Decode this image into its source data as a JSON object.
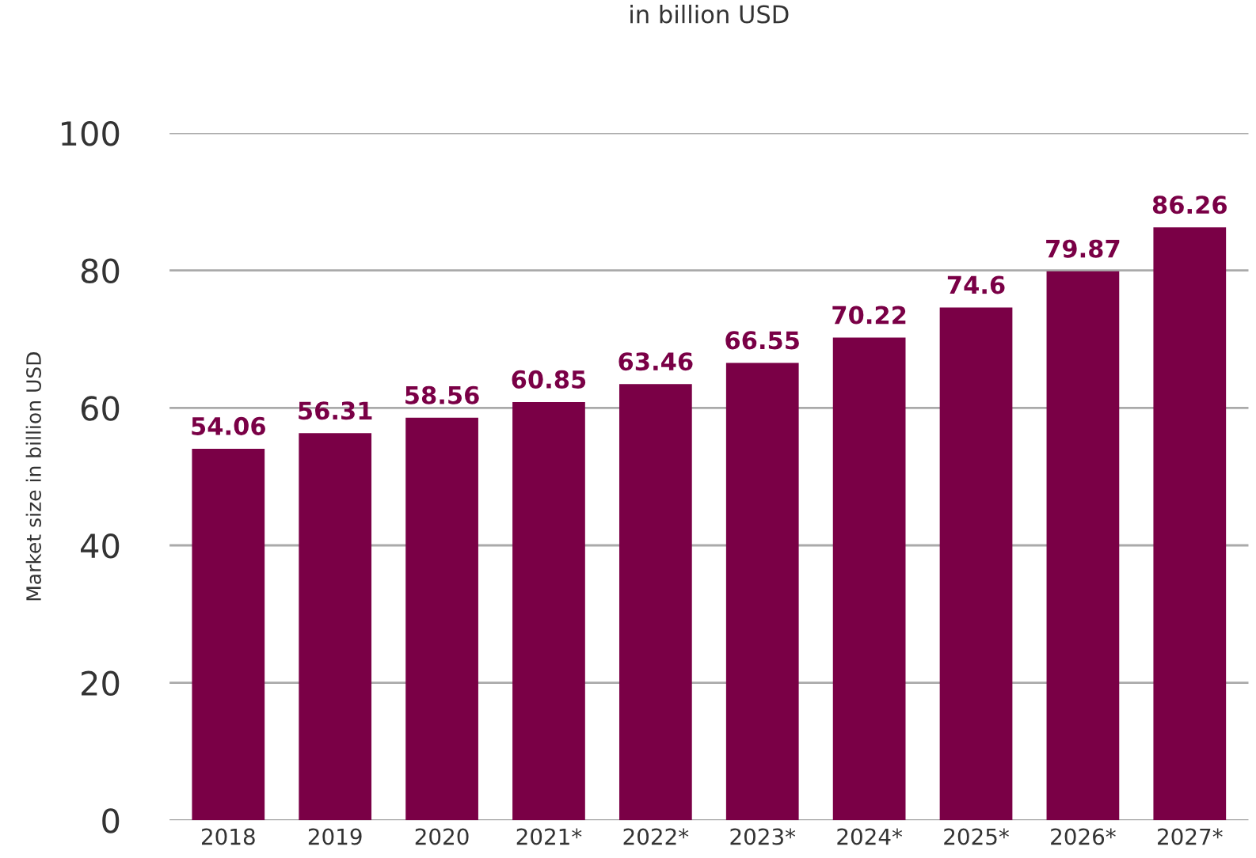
{
  "chart_data": {
    "type": "bar",
    "title": "in billion USD",
    "ylabel": "Market size in billion USD",
    "categories": [
      "2018",
      "2019",
      "2020",
      "2021*",
      "2022*",
      "2023*",
      "2024*",
      "2025*",
      "2026*",
      "2027*"
    ],
    "values": [
      54.06,
      56.31,
      58.56,
      60.85,
      63.46,
      66.55,
      70.22,
      74.6,
      79.87,
      86.26
    ],
    "color": "#7a0046",
    "ylim": [
      0,
      100
    ],
    "yticks": [
      0,
      20,
      40,
      60,
      80,
      100
    ],
    "grid": "y",
    "data_labels": true,
    "legend": false
  }
}
